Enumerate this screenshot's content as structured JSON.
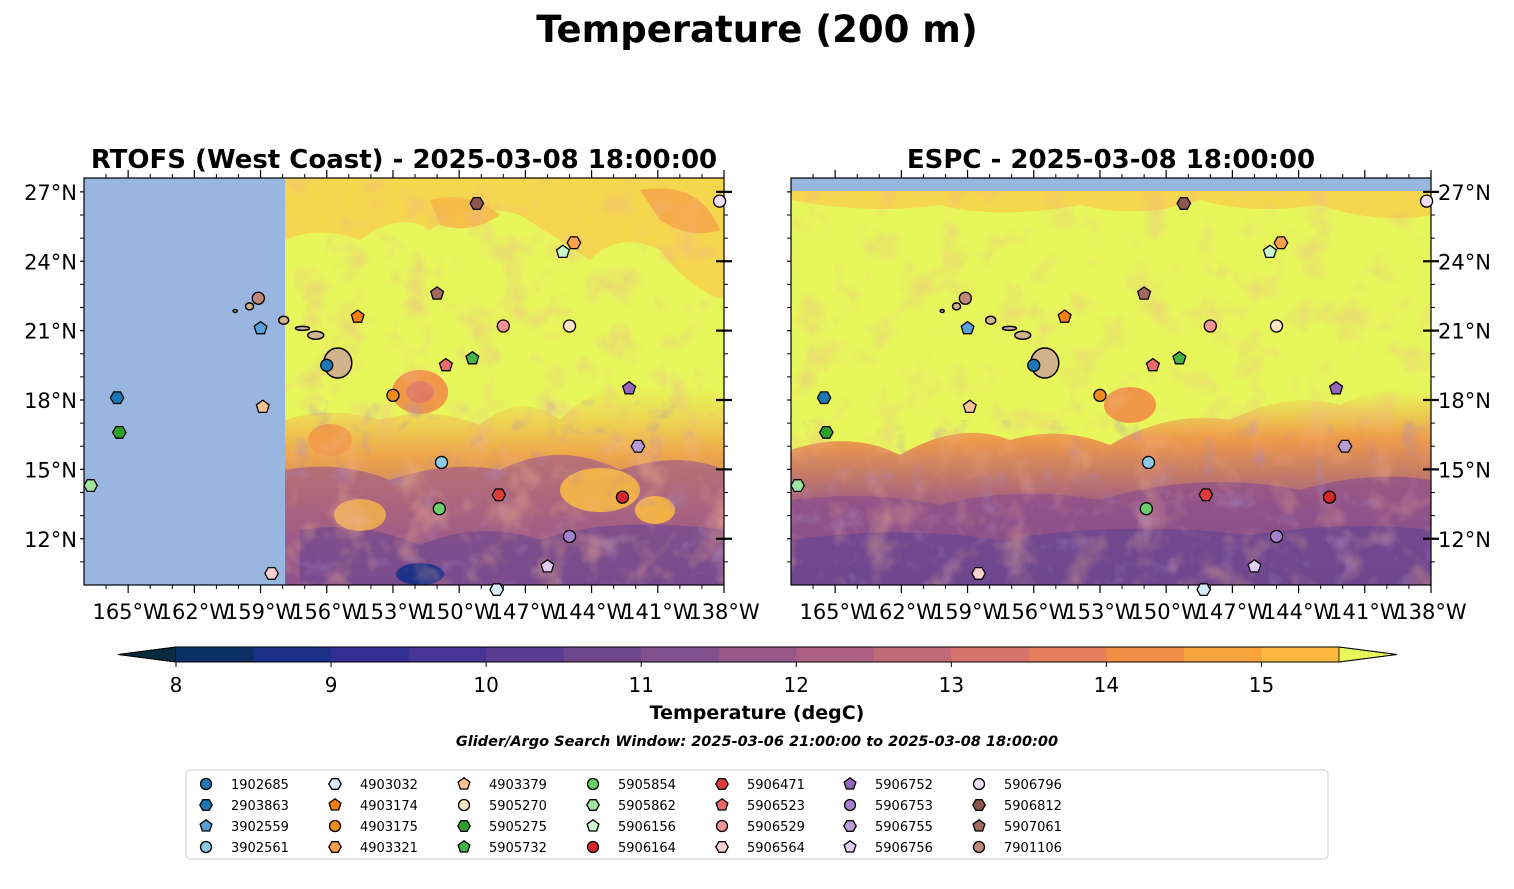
{
  "figure": {
    "title": "Temperature (200 m)",
    "search_window": "Glider/Argo Search Window: 2025-03-06 21:00:00 to 2025-03-08 18:00:00"
  },
  "panels": [
    {
      "title": "RTOFS (West Coast) - 2025-03-08 18:00:00",
      "lat_labels_side": "left",
      "model_west_edge_lon": -157.5
    },
    {
      "title": "ESPC - 2025-03-08 18:00:00",
      "lat_labels_side": "right",
      "model_north_edge_lat": 27.0
    }
  ],
  "chart_data": {
    "type": "contour_map",
    "variable": "Temperature (200 m)",
    "units": "degC",
    "lon_range": [
      -167,
      -138
    ],
    "lat_range": [
      10,
      27.6
    ],
    "lon_ticks": [
      -165,
      -162,
      -159,
      -156,
      -153,
      -150,
      -147,
      -144,
      -141,
      -138
    ],
    "lon_tick_labels": [
      "165°W",
      "162°W",
      "159°W",
      "156°W",
      "153°W",
      "150°W",
      "147°W",
      "144°W",
      "141°W",
      "138°W"
    ],
    "lat_ticks": [
      12,
      15,
      18,
      21,
      24,
      27
    ],
    "lat_tick_labels": [
      "12°N",
      "15°N",
      "18°N",
      "21°N",
      "24°N",
      "27°N"
    ],
    "land_color": "#d2b48c",
    "ocean_nodata_color": "#98b6e0",
    "colorbar": {
      "label": "Temperature (degC)",
      "min": 8,
      "max": 15.5,
      "step": 0.5,
      "ticks": [
        8,
        9,
        10,
        11,
        12,
        13,
        14,
        15
      ],
      "extend": "both",
      "colors": [
        "#062a3e",
        "#0d3064",
        "#1e3188",
        "#332f94",
        "#473596",
        "#5b3e93",
        "#6e478f",
        "#82508c",
        "#975889",
        "#ad6083",
        "#c06979",
        "#d7736a",
        "#e57e5a",
        "#f28f47",
        "#f9a43b",
        "#fab83f",
        "#f7d14c",
        "#e7f75b"
      ]
    },
    "legend_placement": "bottom-center",
    "floats": [
      {
        "id": "1902685",
        "marker": "circle",
        "color": "#1f77b4",
        "lon": -156.0,
        "lat": 19.5
      },
      {
        "id": "2903863",
        "marker": "hexagon",
        "color": "#1f77b4",
        "lon": -165.5,
        "lat": 18.1
      },
      {
        "id": "3902559",
        "marker": "pentagon",
        "color": "#5aa0d8",
        "lon": -159.0,
        "lat": 21.1
      },
      {
        "id": "3902561",
        "marker": "circle",
        "color": "#8ecae8",
        "lon": -150.8,
        "lat": 15.3
      },
      {
        "id": "4903032",
        "marker": "hexagon",
        "color": "#d6ecfa",
        "lon": -148.3,
        "lat": 9.8
      },
      {
        "id": "4903174",
        "marker": "pentagon",
        "color": "#ff7f0e",
        "lon": -154.6,
        "lat": 21.6
      },
      {
        "id": "4903175",
        "marker": "circle",
        "color": "#f28b1d",
        "lon": -153.0,
        "lat": 18.2
      },
      {
        "id": "4903321",
        "marker": "hexagon",
        "color": "#ffa04a",
        "lon": -144.8,
        "lat": 24.8
      },
      {
        "id": "4903379",
        "marker": "pentagon",
        "color": "#ffc390",
        "lon": -158.9,
        "lat": 17.7
      },
      {
        "id": "5905270",
        "marker": "circle",
        "color": "#ffe5c4",
        "lon": -145.0,
        "lat": 21.2
      },
      {
        "id": "5905275",
        "marker": "hexagon",
        "color": "#2ca02c",
        "lon": -165.4,
        "lat": 16.6
      },
      {
        "id": "5905732",
        "marker": "pentagon",
        "color": "#44b244",
        "lon": -149.4,
        "lat": 19.8
      },
      {
        "id": "5905854",
        "marker": "circle",
        "color": "#6ccd6c",
        "lon": -150.9,
        "lat": 13.3
      },
      {
        "id": "5905862",
        "marker": "hexagon",
        "color": "#9fe39f",
        "lon": -166.7,
        "lat": 14.3
      },
      {
        "id": "5906156",
        "marker": "pentagon",
        "color": "#ccf9cc",
        "lon": -145.3,
        "lat": 24.4
      },
      {
        "id": "5906164",
        "marker": "circle",
        "color": "#d62728",
        "lon": -142.6,
        "lat": 13.8
      },
      {
        "id": "5906471",
        "marker": "hexagon",
        "color": "#e03c3c",
        "lon": -148.2,
        "lat": 13.9
      },
      {
        "id": "5906523",
        "marker": "pentagon",
        "color": "#ec6a6a",
        "lon": -150.6,
        "lat": 19.5
      },
      {
        "id": "5906529",
        "marker": "circle",
        "color": "#f59393",
        "lon": -148.0,
        "lat": 21.2
      },
      {
        "id": "5906564",
        "marker": "hexagon",
        "color": "#ffcfcf",
        "lon": -158.5,
        "lat": 10.5
      },
      {
        "id": "5906752",
        "marker": "pentagon",
        "color": "#9467bd",
        "lon": -142.3,
        "lat": 18.5
      },
      {
        "id": "5906753",
        "marker": "circle",
        "color": "#a681cb",
        "lon": -145.0,
        "lat": 12.1
      },
      {
        "id": "5906755",
        "marker": "hexagon",
        "color": "#b99bd8",
        "lon": -141.9,
        "lat": 16.0
      },
      {
        "id": "5906756",
        "marker": "pentagon",
        "color": "#e0ccf5",
        "lon": -146.0,
        "lat": 10.8
      },
      {
        "id": "5906796",
        "marker": "circle",
        "color": "#f0ddfb",
        "lon": -138.2,
        "lat": 26.6
      },
      {
        "id": "5906812",
        "marker": "hexagon",
        "color": "#8c564b",
        "lon": -149.2,
        "lat": 26.5
      },
      {
        "id": "5907061",
        "marker": "pentagon",
        "color": "#a16b60",
        "lon": -151.0,
        "lat": 22.6
      },
      {
        "id": "7901106",
        "marker": "circle",
        "color": "#c08878",
        "lon": -159.1,
        "lat": 22.4
      }
    ]
  }
}
